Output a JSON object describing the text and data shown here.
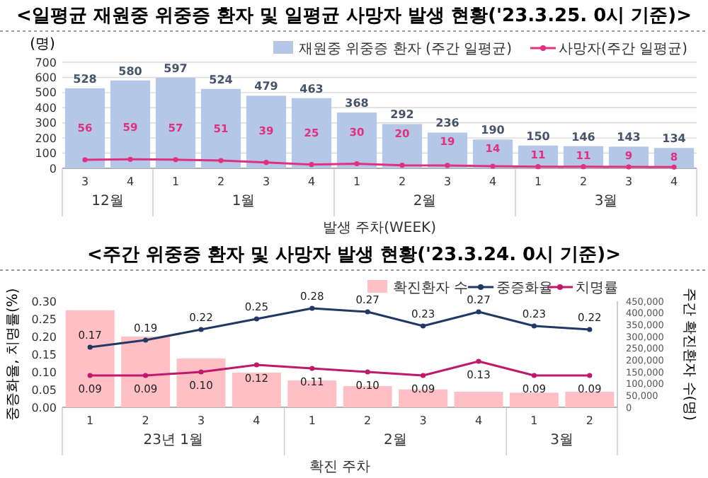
{
  "chart_data": [
    {
      "type": "bar",
      "title": "<일평균 재원중 위중증 환자 및 일평균 사망자 발생 현황('23.3.25. 0시 기준)>",
      "ylabel": "(명)",
      "xlabel": "발생 주차(WEEK)",
      "categories": [
        "3",
        "4",
        "1",
        "2",
        "3",
        "4",
        "1",
        "2",
        "3",
        "4",
        "1",
        "2",
        "3",
        "4"
      ],
      "annotations": [
        "12월",
        "1월",
        "2월",
        "3월"
      ],
      "series": [
        {
          "name": "재원중 위중증 환자 (주간 일평균)",
          "color": "#b4c7e7",
          "values": [
            528,
            580,
            597,
            524,
            479,
            463,
            368,
            292,
            236,
            190,
            150,
            146,
            143,
            134
          ]
        },
        {
          "name": "사망자(주간 일평균)",
          "type": "line",
          "color": "#e0307f",
          "values": [
            56,
            59,
            57,
            51,
            39,
            25,
            30,
            20,
            19,
            14,
            11,
            11,
            9,
            8
          ]
        }
      ],
      "ylim": [
        0,
        700
      ],
      "yticks": [
        0,
        100,
        200,
        300,
        400,
        500,
        600,
        700
      ],
      "grid": "y",
      "legend": "top right",
      "data_labels": true,
      "marker": "circle"
    },
    {
      "type": "bar",
      "title": "<주간 위중증 환자 및 사망자 발생 현황('23.3.24. 0시 기준)>",
      "ylabel": "중증화율, 치명률(%)",
      "y2label": "주간 확진환자 수(명)",
      "xlabel": "확진 주차",
      "categories": [
        "1",
        "2",
        "3",
        "4",
        "1",
        "2",
        "3",
        "4",
        "1",
        "2"
      ],
      "annotations": [
        "23년 1월",
        "2월",
        "3월"
      ],
      "series": [
        {
          "name": "확진환자 수",
          "axis": "y2",
          "color": "#ffc0c5",
          "values": [
            412000,
            300000,
            207000,
            147000,
            114000,
            90000,
            76000,
            66000,
            62000,
            66000
          ]
        },
        {
          "name": "중증화율",
          "type": "line",
          "color": "#203864",
          "values": [
            0.17,
            0.19,
            0.22,
            0.25,
            0.28,
            0.27,
            0.23,
            0.27,
            0.23,
            0.22
          ],
          "value_labels": [
            "0.17",
            "0.19",
            "0.22",
            "0.25",
            "0.28",
            "0.27",
            "0.23",
            "0.27",
            "0.23",
            "0.22"
          ]
        },
        {
          "name": "치명률",
          "type": "line",
          "color": "#c0186a",
          "values": [
            0.09,
            0.09,
            0.1,
            0.12,
            0.11,
            0.1,
            0.09,
            0.13,
            0.09,
            0.09
          ],
          "value_labels": [
            "0.09",
            "0.09",
            "0.10",
            "0.12",
            "0.11",
            "0.10",
            "0.09",
            "0.13",
            "0.09",
            "0.09"
          ]
        }
      ],
      "ylim": [
        0,
        0.3
      ],
      "yticks": [
        {
          "value": 0,
          "label": "0.00"
        },
        {
          "value": 0.05,
          "label": "0.05"
        },
        {
          "value": 0.1,
          "label": "0.10"
        },
        {
          "value": 0.15,
          "label": "0.15"
        },
        {
          "value": 0.2,
          "label": "0.20"
        },
        {
          "value": 0.25,
          "label": "0.25"
        },
        {
          "value": 0.3,
          "label": "0.30"
        }
      ],
      "y2lim": [
        0,
        450000
      ],
      "y2ticks": [
        {
          "value": 0,
          "label": "0"
        },
        {
          "value": 50000,
          "label": "50,000"
        },
        {
          "value": 100000,
          "label": "100,000"
        },
        {
          "value": 150000,
          "label": "150,000"
        },
        {
          "value": 200000,
          "label": "200,000"
        },
        {
          "value": 250000,
          "label": "250,000"
        },
        {
          "value": 300000,
          "label": "300,000"
        },
        {
          "value": 350000,
          "label": "350,000"
        },
        {
          "value": 400000,
          "label": "400,000"
        },
        {
          "value": 450000,
          "label": "450,000"
        }
      ],
      "legend": "top right",
      "marker": "circle"
    }
  ]
}
